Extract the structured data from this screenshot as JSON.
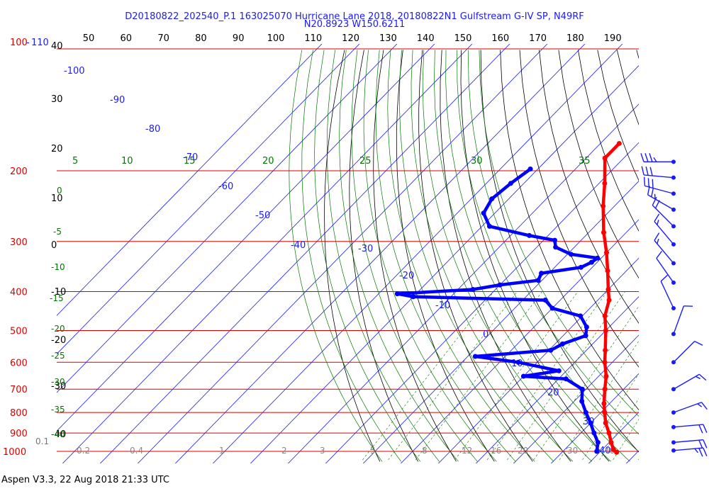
{
  "title_line1": "D20180822_202540_P.1 163025070 Hurricane Lane 2018, 20180822N1 Gulfstream G-IV SP, N49RF",
  "title_line2": "N20.8923 W150.6211",
  "footer": "Aspen V3.3, 22 Aug 2018  21:33 UTC",
  "colors": {
    "pressure_lines": "#dd0000",
    "isotherms": "#1a1aff",
    "dry_adiabats": "#000000",
    "moist_adiabats": "#007700",
    "temperature_trace": "#ff0000",
    "dewpoint_trace": "#0000ff",
    "wind_barbs": "#1a1aff"
  },
  "chart_data": {
    "type": "skew-t log-p diagram",
    "top_axis_labels": [
      "50",
      "60",
      "70",
      "80",
      "90",
      "100",
      "110",
      "120",
      "130",
      "140",
      "150",
      "160",
      "170",
      "180",
      "190"
    ],
    "corner_labels": [
      "100",
      "110"
    ],
    "pressure_axis_labels": [
      {
        "p": 200,
        "label": "200"
      },
      {
        "p": 300,
        "label": "300"
      },
      {
        "p": 400,
        "label": "400"
      },
      {
        "p": 500,
        "label": "500"
      },
      {
        "p": 600,
        "label": "600"
      },
      {
        "p": 700,
        "label": "700"
      },
      {
        "p": 800,
        "label": "800"
      },
      {
        "p": 900,
        "label": "900"
      },
      {
        "p": 1000,
        "label": "1000"
      }
    ],
    "left_axis_numbers": [
      "40",
      "30",
      "20",
      "10",
      "0",
      "-10",
      "-20",
      "-30",
      "-40"
    ],
    "isotherm_labels": [
      "-100",
      "-90",
      "-80",
      "-70",
      "-60",
      "-50",
      "-40",
      "-30",
      "-20",
      "-10",
      "0",
      "10",
      "20",
      "30",
      "40"
    ],
    "theta_e_labels": [
      "5",
      "10",
      "15",
      "20",
      "25",
      "30",
      "35"
    ],
    "moist_adiabat_labels": [
      "0",
      "-5",
      "-10",
      "-15",
      "-20",
      "-25",
      "-30",
      "-35",
      "-40"
    ],
    "mixing_ratio_labels": [
      "0.1",
      "0.2",
      "0.4",
      "1",
      "2",
      "3",
      "5",
      "8",
      "12",
      "16",
      "20",
      "30",
      "40"
    ],
    "temperature_profile": [
      {
        "p": 171,
        "t": -55
      },
      {
        "p": 186,
        "t": -55
      },
      {
        "p": 215,
        "t": -48.5
      },
      {
        "p": 245,
        "t": -43
      },
      {
        "p": 285,
        "t": -36
      },
      {
        "p": 320,
        "t": -30
      },
      {
        "p": 355,
        "t": -25
      },
      {
        "p": 395,
        "t": -20
      },
      {
        "p": 420,
        "t": -17
      },
      {
        "p": 460,
        "t": -14
      },
      {
        "p": 500,
        "t": -10
      },
      {
        "p": 560,
        "t": -5
      },
      {
        "p": 600,
        "t": -2
      },
      {
        "p": 650,
        "t": 2
      },
      {
        "p": 700,
        "t": 5
      },
      {
        "p": 760,
        "t": 8.5
      },
      {
        "p": 800,
        "t": 11
      },
      {
        "p": 850,
        "t": 14
      },
      {
        "p": 900,
        "t": 17.5
      },
      {
        "p": 950,
        "t": 20.5
      },
      {
        "p": 990,
        "t": 23
      },
      {
        "p": 1005,
        "t": 24.5
      }
    ],
    "dewpoint_profile": [
      {
        "p": 198,
        "t": -72
      },
      {
        "p": 215,
        "t": -73.5
      },
      {
        "p": 235,
        "t": -74.5
      },
      {
        "p": 255,
        "t": -73
      },
      {
        "p": 275,
        "t": -68
      },
      {
        "p": 290,
        "t": -55
      },
      {
        "p": 298,
        "t": -47
      },
      {
        "p": 310,
        "t": -45
      },
      {
        "p": 323,
        "t": -39
      },
      {
        "p": 330,
        "t": -31
      },
      {
        "p": 338,
        "t": -31.5
      },
      {
        "p": 348,
        "t": -33
      },
      {
        "p": 360,
        "t": -42
      },
      {
        "p": 375,
        "t": -41
      },
      {
        "p": 385,
        "t": -50
      },
      {
        "p": 395,
        "t": -56
      },
      {
        "p": 405,
        "t": -75
      },
      {
        "p": 412,
        "t": -70
      },
      {
        "p": 420,
        "t": -34
      },
      {
        "p": 440,
        "t": -30
      },
      {
        "p": 460,
        "t": -20.5
      },
      {
        "p": 490,
        "t": -16
      },
      {
        "p": 515,
        "t": -14
      },
      {
        "p": 540,
        "t": -18
      },
      {
        "p": 560,
        "t": -19.5
      },
      {
        "p": 580,
        "t": -38
      },
      {
        "p": 600,
        "t": -25
      },
      {
        "p": 630,
        "t": -12
      },
      {
        "p": 650,
        "t": -20
      },
      {
        "p": 660,
        "t": -8
      },
      {
        "p": 700,
        "t": -1
      },
      {
        "p": 750,
        "t": 2
      },
      {
        "p": 800,
        "t": 6
      },
      {
        "p": 850,
        "t": 10
      },
      {
        "p": 900,
        "t": 13.5
      },
      {
        "p": 950,
        "t": 17
      },
      {
        "p": 1000,
        "t": 19
      }
    ],
    "wind_barbs": [
      {
        "p": 190,
        "speed_kt": 35,
        "dir_deg": 270
      },
      {
        "p": 208,
        "speed_kt": 30,
        "dir_deg": 275
      },
      {
        "p": 228,
        "speed_kt": 30,
        "dir_deg": 285
      },
      {
        "p": 250,
        "speed_kt": 25,
        "dir_deg": 300
      },
      {
        "p": 275,
        "speed_kt": 20,
        "dir_deg": 315
      },
      {
        "p": 305,
        "speed_kt": 15,
        "dir_deg": 320
      },
      {
        "p": 340,
        "speed_kt": 15,
        "dir_deg": 320
      },
      {
        "p": 380,
        "speed_kt": 10,
        "dir_deg": 325
      },
      {
        "p": 440,
        "speed_kt": 10,
        "dir_deg": 335
      },
      {
        "p": 510,
        "speed_kt": 10,
        "dir_deg": 20
      },
      {
        "p": 600,
        "speed_kt": 10,
        "dir_deg": 45
      },
      {
        "p": 700,
        "speed_kt": 15,
        "dir_deg": 60
      },
      {
        "p": 800,
        "speed_kt": 15,
        "dir_deg": 70
      },
      {
        "p": 870,
        "speed_kt": 20,
        "dir_deg": 85
      },
      {
        "p": 950,
        "speed_kt": 20,
        "dir_deg": 85
      },
      {
        "p": 995,
        "speed_kt": 25,
        "dir_deg": 85
      }
    ]
  }
}
